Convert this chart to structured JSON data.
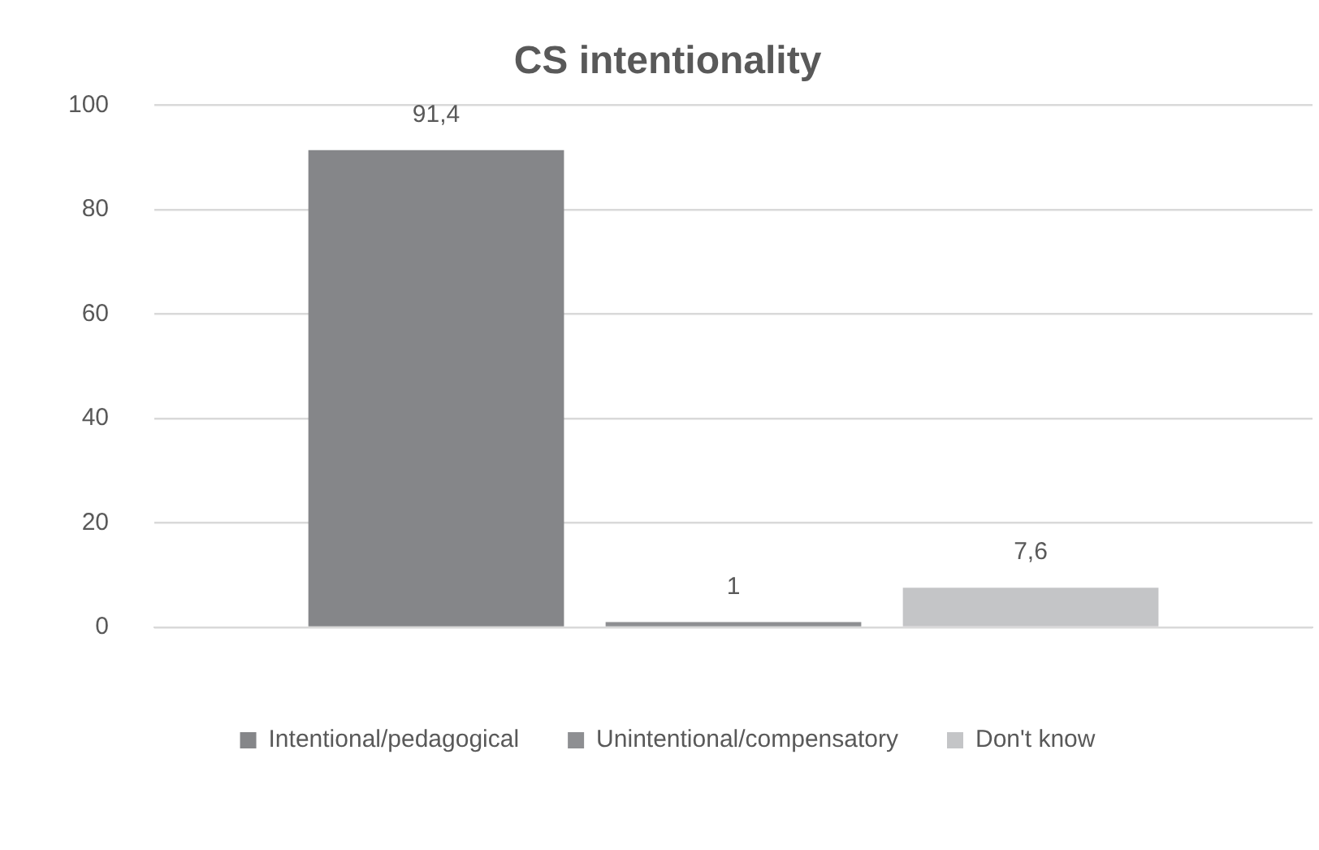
{
  "chart_data": {
    "type": "bar",
    "title": "CS intentionality",
    "categories": [
      null
    ],
    "series": [
      {
        "name": "Intentional/pedagogical",
        "color": "#858689",
        "values": [
          91.4
        ],
        "value_labels": [
          "91,4"
        ]
      },
      {
        "name": "Unintentional/compensatory",
        "color": "#8e8f92",
        "values": [
          1
        ],
        "value_labels": [
          "1"
        ]
      },
      {
        "name": "Don't know",
        "color": "#c4c5c7",
        "values": [
          7.6
        ],
        "value_labels": [
          "7,6"
        ]
      }
    ],
    "ylim": [
      0,
      100
    ],
    "yticks": [
      0,
      20,
      40,
      60,
      80,
      100
    ],
    "grid": "y",
    "legend": "bottom"
  }
}
